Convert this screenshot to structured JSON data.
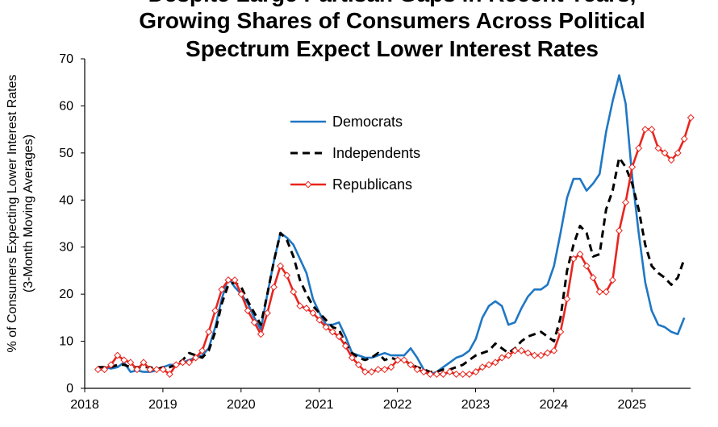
{
  "chart_data": {
    "type": "line",
    "title_lines": [
      "Despite Large Partisan Gaps in Recent Years,",
      "Growing Shares of Consumers Across Political",
      "Spectrum Expect Lower Interest Rates"
    ],
    "ylabel_lines": [
      "% of Consumers Expecting Lower Interest Rates",
      "(3-Month Moving Averages)"
    ],
    "xlabel": "",
    "xlim": [
      2018,
      2025.75
    ],
    "ylim": [
      0,
      70
    ],
    "x_ticks": [
      2018,
      2019,
      2020,
      2021,
      2022,
      2023,
      2024,
      2025
    ],
    "x_tick_labels": [
      "2018",
      "2019",
      "2020",
      "2021",
      "2022",
      "2023",
      "2024",
      "2025"
    ],
    "y_ticks": [
      0,
      10,
      20,
      30,
      40,
      50,
      60,
      70
    ],
    "y_tick_labels": [
      "0",
      "10",
      "20",
      "30",
      "40",
      "50",
      "60",
      "70"
    ],
    "legend_position": "upper-left-inside",
    "x_start": 2018.17,
    "x_step": 0.08333,
    "series": [
      {
        "name": "Democrats",
        "color": "#1f77c4",
        "style": "solid",
        "marker": "none",
        "values": [
          4.5,
          4.5,
          4.2,
          4.5,
          5.5,
          3.5,
          3.8,
          3.5,
          3.5,
          3.8,
          4.5,
          5.0,
          5.0,
          5.5,
          6.0,
          6.5,
          7.0,
          8.5,
          13.0,
          19.0,
          23.5,
          21.5,
          20.0,
          18.0,
          15.0,
          12.5,
          20.0,
          27.0,
          33.0,
          32.0,
          30.5,
          27.5,
          24.5,
          19.0,
          16.0,
          13.5,
          13.5,
          14.0,
          11.0,
          7.5,
          7.0,
          6.5,
          6.5,
          7.0,
          7.5,
          7.0,
          7.0,
          7.0,
          8.5,
          6.5,
          4.0,
          3.0,
          3.5,
          4.5,
          5.5,
          6.5,
          7.0,
          8.0,
          10.5,
          15.0,
          17.5,
          18.5,
          17.5,
          13.5,
          14.0,
          17.0,
          19.5,
          21.0,
          21.0,
          22.0,
          26.0,
          33.0,
          40.5,
          44.5,
          44.5,
          42.0,
          43.5,
          45.5,
          54.5,
          61.0,
          66.5,
          60.5,
          45.0,
          33.0,
          22.5,
          16.5,
          13.5,
          13.0,
          12.0,
          11.5,
          15.0
        ]
      },
      {
        "name": "Independents",
        "color": "#000000",
        "style": "dashed",
        "marker": "none",
        "values": [
          4.5,
          4.5,
          4.5,
          5.0,
          5.0,
          4.5,
          4.5,
          4.5,
          4.5,
          4.0,
          4.5,
          4.5,
          5.0,
          6.0,
          7.5,
          7.0,
          6.5,
          8.0,
          12.0,
          18.0,
          22.0,
          22.5,
          21.5,
          18.5,
          16.0,
          13.5,
          20.0,
          27.0,
          33.0,
          31.5,
          28.0,
          23.0,
          20.0,
          17.5,
          16.0,
          14.5,
          13.0,
          12.5,
          9.5,
          7.5,
          6.5,
          6.0,
          6.5,
          7.5,
          6.0,
          6.5,
          6.0,
          6.0,
          5.0,
          4.5,
          4.0,
          3.5,
          3.5,
          4.0,
          4.0,
          4.5,
          5.0,
          6.0,
          7.0,
          7.5,
          8.0,
          9.5,
          8.5,
          7.5,
          8.5,
          10.0,
          11.0,
          11.5,
          12.0,
          11.0,
          10.0,
          15.0,
          25.0,
          30.5,
          34.5,
          33.0,
          28.0,
          28.5,
          38.0,
          42.0,
          49.0,
          47.0,
          43.5,
          38.0,
          30.5,
          26.0,
          24.5,
          23.5,
          22.0,
          23.5,
          27.5
        ]
      },
      {
        "name": "Republicans",
        "color": "#e8251e",
        "style": "solid",
        "marker": "diamond",
        "values": [
          4.0,
          4.0,
          5.0,
          7.0,
          6.0,
          5.5,
          4.0,
          5.5,
          4.0,
          4.0,
          4.0,
          3.0,
          5.0,
          5.5,
          5.5,
          6.5,
          8.0,
          12.0,
          16.5,
          21.0,
          23.0,
          23.0,
          20.0,
          16.5,
          14.0,
          11.5,
          16.0,
          21.5,
          26.0,
          24.0,
          20.5,
          17.5,
          17.0,
          16.0,
          14.5,
          13.0,
          12.0,
          11.0,
          9.0,
          6.5,
          5.0,
          3.5,
          3.5,
          4.0,
          4.0,
          4.5,
          6.0,
          6.0,
          5.0,
          4.0,
          3.5,
          3.0,
          3.0,
          3.0,
          3.5,
          3.0,
          3.0,
          3.0,
          3.5,
          4.5,
          5.0,
          5.5,
          6.5,
          7.0,
          8.0,
          8.0,
          7.5,
          7.0,
          7.0,
          7.5,
          8.0,
          12.0,
          19.0,
          27.5,
          28.5,
          26.0,
          23.5,
          20.5,
          20.5,
          23.0,
          33.5,
          39.5,
          47.0,
          51.0,
          55.0,
          55.0,
          51.0,
          50.0,
          48.5,
          50.0,
          53.0,
          57.5
        ]
      }
    ]
  }
}
